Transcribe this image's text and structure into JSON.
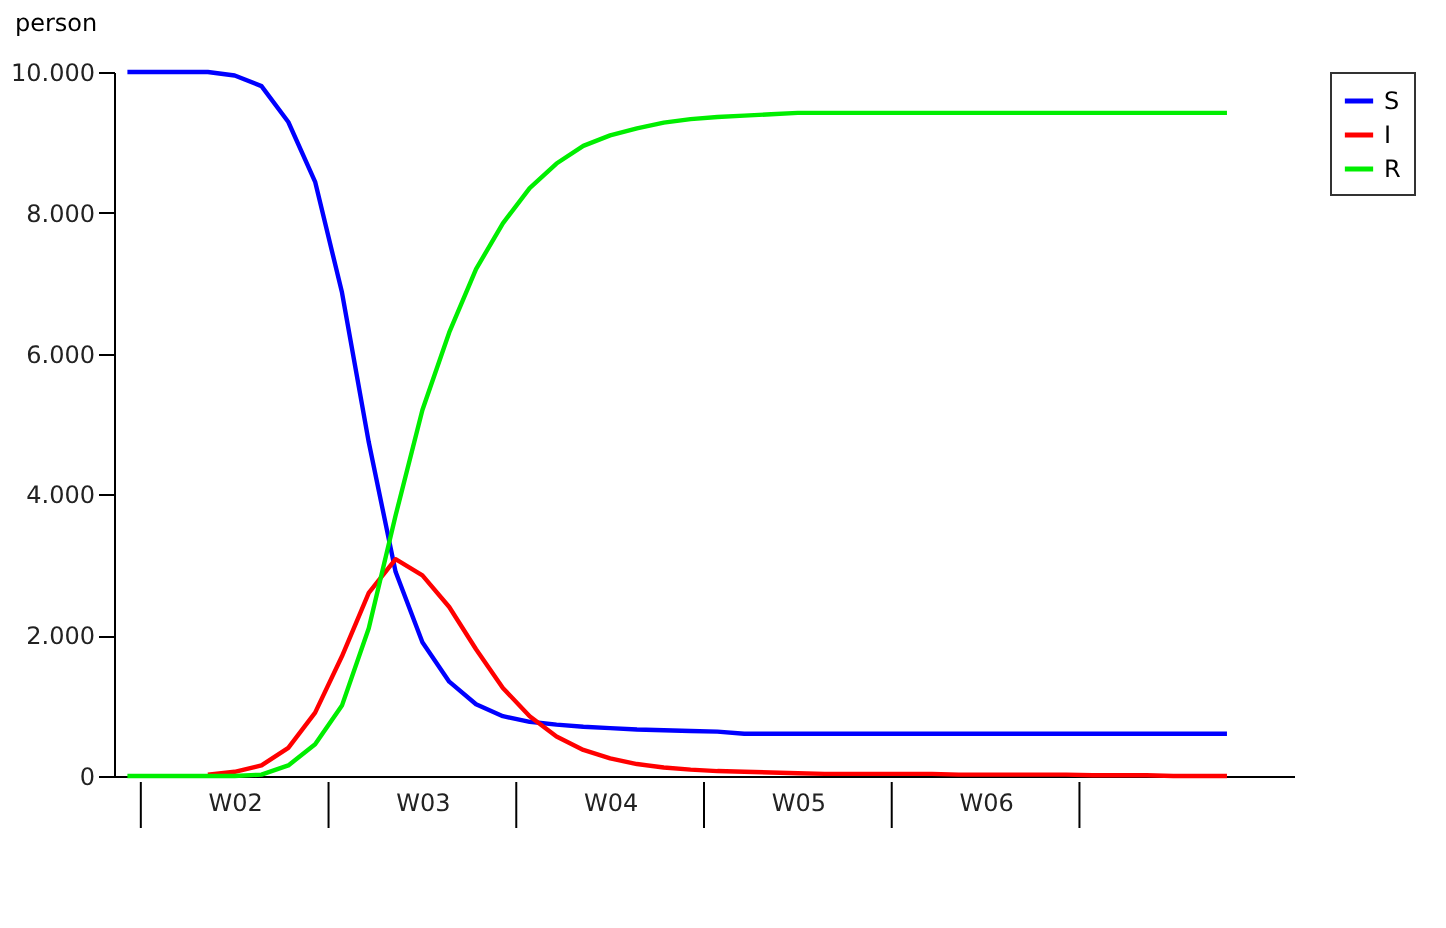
{
  "chart_data": {
    "type": "line",
    "ylabel": "person",
    "categories": [
      null,
      null,
      null,
      null,
      "W02",
      null,
      null,
      null,
      null,
      null,
      null,
      "W03",
      null,
      null,
      null,
      null,
      null,
      null,
      "W04",
      null,
      null,
      null,
      null,
      null,
      null,
      "W05",
      null,
      null,
      null,
      null,
      null,
      null,
      "W06",
      null,
      null,
      null,
      null,
      null,
      null,
      null,
      null,
      null
    ],
    "series": [
      {
        "name": "S",
        "color": "#0000ff",
        "values": [
          10000,
          10000,
          10000,
          10000,
          9950,
          9800,
          9290,
          8440,
          6870,
          4740,
          2900,
          1900,
          1340,
          1020,
          850,
          770,
          730,
          700,
          680,
          660,
          650,
          640,
          630,
          600,
          600,
          600,
          600,
          600,
          600,
          600,
          600,
          600,
          600,
          600,
          600,
          600,
          600,
          600,
          600,
          600,
          600,
          600
        ]
      },
      {
        "name": "I",
        "color": "#ff0000",
        "values": [
          null,
          null,
          null,
          20,
          60,
          150,
          400,
          900,
          1700,
          2600,
          3080,
          2850,
          2400,
          1800,
          1250,
          850,
          560,
          370,
          250,
          170,
          120,
          90,
          70,
          60,
          50,
          40,
          30,
          30,
          30,
          30,
          30,
          20,
          20,
          20,
          20,
          20,
          10,
          10,
          10,
          0,
          0,
          0
        ]
      },
      {
        "name": "R",
        "color": "#00ee00",
        "values": [
          0,
          0,
          0,
          0,
          0,
          20,
          150,
          450,
          1000,
          2100,
          3700,
          5200,
          6300,
          7200,
          7850,
          8350,
          8700,
          8950,
          9100,
          9200,
          9280,
          9330,
          9360,
          9380,
          9400,
          9420,
          9420,
          9420,
          9420,
          9420,
          9420,
          9420,
          9420,
          9420,
          9420,
          9420,
          9420,
          9420,
          9420,
          9420,
          9420,
          9420
        ]
      }
    ],
    "ylim": [
      0,
      10000
    ],
    "yticks": [
      0,
      {
        "value": 2000,
        "label": "2.000"
      },
      {
        "value": 4000,
        "label": "4.000"
      },
      {
        "value": 6000,
        "label": "6.000"
      },
      {
        "value": 8000,
        "label": "8.000"
      },
      {
        "value": 10000,
        "label": "10.000"
      }
    ],
    "grid": false,
    "legend": "right",
    "line_style": "solid",
    "marker": "none"
  }
}
